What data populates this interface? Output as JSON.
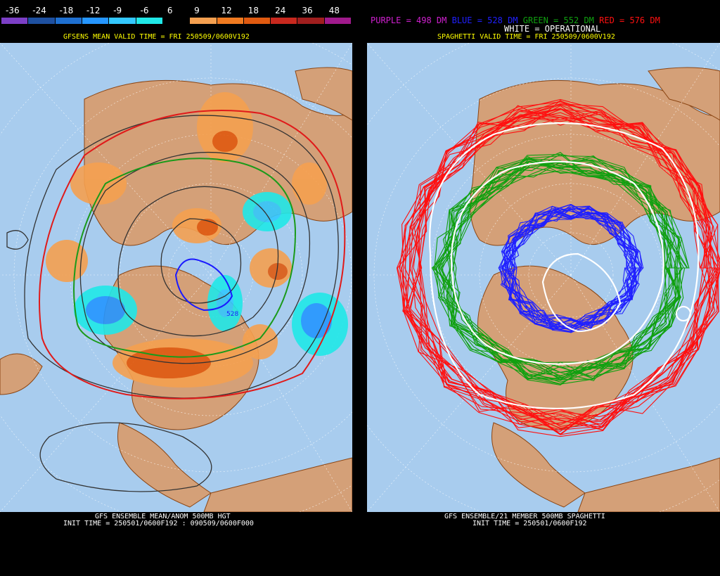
{
  "left": {
    "scale_labels": [
      "-36",
      "-24",
      "-18",
      "-12",
      "-9",
      "-6",
      "6",
      "9",
      "12",
      "18",
      "24",
      "36",
      "48"
    ],
    "scale_colors": [
      "#7c3fc6",
      "#1e50a0",
      "#1e6fd0",
      "#2596ff",
      "#33c8ff",
      "#20e8e8",
      "#000000",
      "#f5a050",
      "#f07a20",
      "#e05a10",
      "#c8281e",
      "#a01e1e",
      "#a01a8c"
    ],
    "valid_time": "GFSENS MEAN VALID TIME = FRI 250509/0600V192",
    "footer_title": "GFS ENSEMBLE MEAN/ANOM 500MB HGT",
    "footer_init": "INIT TIME = 250501/0600F192 : 090509/0600F000",
    "contour_label": "528"
  },
  "right": {
    "legend": [
      {
        "text": "PURPLE = 498 DM",
        "color": "#d020d0"
      },
      {
        "text": "BLUE = 528 DM",
        "color": "#2020ff"
      },
      {
        "text": "GREEN = 552 DM",
        "color": "#10a010"
      },
      {
        "text": "RED = 576 DM",
        "color": "#ff1010"
      }
    ],
    "operational_note": "WHITE = OPERATIONAL",
    "valid_time": "SPAGHETTI VALID TIME = FRI 250509/0600V192",
    "footer_title": "GFS ENSEMBLE/21 MEMBER 500MB SPAGHETTI",
    "footer_init": "INIT TIME = 250501/0600F192"
  },
  "colors": {
    "ocean": "#a8ccee",
    "land": "#d4a078",
    "border": "#8b4513"
  }
}
